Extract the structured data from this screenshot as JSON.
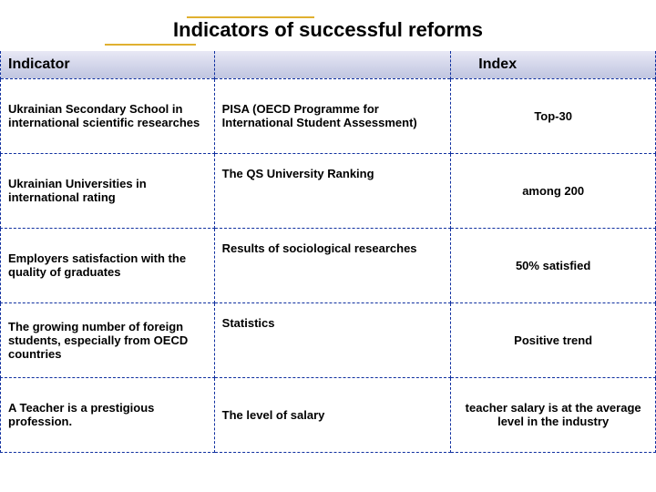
{
  "title": "Indicators of successful reforms",
  "headers": {
    "indicator": "Indicator",
    "measure": "",
    "index": "Index"
  },
  "rows": [
    {
      "indicator": "Ukrainian Secondary School in international scientific researches",
      "measure": "PISA (OECD Programme for International Student Assessment)",
      "index": "Top-30"
    },
    {
      "indicator": "Ukrainian Universities in international rating",
      "measure": "The QS University Ranking",
      "index": "among 200"
    },
    {
      "indicator": "Employers satisfaction with the quality of graduates",
      "measure": "Results of sociological researches",
      "index": "50% satisfied"
    },
    {
      "indicator": "The growing number of foreign students, especially from OECD countries",
      "measure": "Statistics",
      "index": "Positive trend"
    },
    {
      "indicator": "A Teacher is a prestigious profession.",
      "measure": "The level of salary",
      "index": "teacher salary is at the average level in the industry"
    }
  ],
  "colors": {
    "accent": "#e0b030",
    "border": "#1030a0",
    "header_bg_top": "#e8e8f5",
    "header_bg_bottom": "#c0c5e0"
  }
}
